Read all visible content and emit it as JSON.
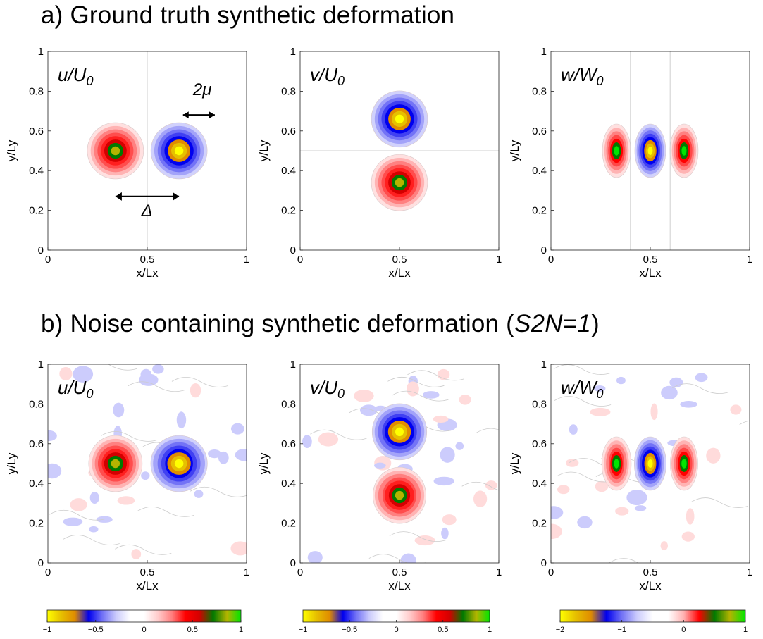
{
  "section_a": {
    "prefix": "a) ",
    "title": "Ground truth synthetic deformation"
  },
  "section_b": {
    "prefix": "b) ",
    "title": "Noise containing synthetic deformation (",
    "title_italic": "S2N=1",
    "title_end": ")"
  },
  "colors": {
    "yellow": "#ffff00",
    "gold": "#e6c000",
    "orange": "#e08c00",
    "blue_dark": "#0000ee",
    "white": "#ffffff",
    "red": "#ff0000",
    "green_dark": "#007a00",
    "olive": "#b4b400",
    "green": "#00e600"
  },
  "chart_data": [
    {
      "type": "heatmap",
      "panel": "u-truth",
      "label": {
        "main": "u/U",
        "sub": "0"
      },
      "xlabel": "x/Lx",
      "ylabel": "y/Ly",
      "xlim": [
        0,
        1
      ],
      "ylim": [
        0,
        1
      ],
      "xticks": [
        "0",
        "0.5",
        "1"
      ],
      "yticks": [
        "0",
        "0.2",
        "0.4",
        "0.6",
        "0.8",
        "1"
      ],
      "blobs": [
        {
          "x": 0.34,
          "y": 0.5,
          "amplitude": 1
        },
        {
          "x": 0.66,
          "y": 0.5,
          "amplitude": -1
        }
      ],
      "guide_lines": {
        "vertical": [
          0.5
        ]
      },
      "annotations": [
        "2μ",
        "Δ"
      ]
    },
    {
      "type": "heatmap",
      "panel": "v-truth",
      "label": {
        "main": "v/U",
        "sub": "0"
      },
      "xlabel": "x/Lx",
      "ylabel": "y/Ly",
      "xlim": [
        0,
        1
      ],
      "ylim": [
        0,
        1
      ],
      "xticks": [
        "0",
        "0.5",
        "1"
      ],
      "yticks": [
        "0",
        "0.2",
        "0.4",
        "0.6",
        "0.8",
        "1"
      ],
      "blobs": [
        {
          "x": 0.5,
          "y": 0.66,
          "amplitude": -1
        },
        {
          "x": 0.5,
          "y": 0.34,
          "amplitude": 1
        }
      ],
      "guide_lines": {
        "horizontal": [
          0.5
        ]
      }
    },
    {
      "type": "heatmap",
      "panel": "w-truth",
      "label": {
        "main": "w/W",
        "sub": "0"
      },
      "xlabel": "x/Lx",
      "ylabel": "y/Ly",
      "xlim": [
        0,
        1
      ],
      "ylim": [
        0,
        1
      ],
      "xticks": [
        "0",
        "0.5",
        "1"
      ],
      "yticks": [
        "0",
        "0.2",
        "0.4",
        "0.6",
        "0.8",
        "1"
      ],
      "blobs": [
        {
          "x": 0.33,
          "y": 0.5,
          "amplitude": 1
        },
        {
          "x": 0.5,
          "y": 0.5,
          "amplitude": -2
        },
        {
          "x": 0.67,
          "y": 0.5,
          "amplitude": 1
        }
      ],
      "guide_lines": {
        "vertical": [
          0.4,
          0.6
        ]
      }
    },
    {
      "type": "heatmap",
      "panel": "u-noisy",
      "label": {
        "main": "u/U",
        "sub": "0"
      },
      "xlabel": "x/Lx",
      "ylabel": "y/Ly",
      "xlim": [
        0,
        1
      ],
      "ylim": [
        0,
        1
      ],
      "xticks": [
        "0",
        "0.5",
        "1"
      ],
      "yticks": [
        "0",
        "0.2",
        "0.4",
        "0.6",
        "0.8",
        "1"
      ],
      "blobs": [
        {
          "x": 0.34,
          "y": 0.5,
          "amplitude": 1
        },
        {
          "x": 0.66,
          "y": 0.5,
          "amplitude": -1
        }
      ],
      "noise": true
    },
    {
      "type": "heatmap",
      "panel": "v-noisy",
      "label": {
        "main": "v/U",
        "sub": "0"
      },
      "xlabel": "x/Lx",
      "ylabel": "y/Ly",
      "xlim": [
        0,
        1
      ],
      "ylim": [
        0,
        1
      ],
      "xticks": [
        "0",
        "0.5",
        "1"
      ],
      "yticks": [
        "0",
        "0.2",
        "0.4",
        "0.6",
        "0.8",
        "1"
      ],
      "blobs": [
        {
          "x": 0.5,
          "y": 0.66,
          "amplitude": -1
        },
        {
          "x": 0.5,
          "y": 0.34,
          "amplitude": 1
        }
      ],
      "noise": true
    },
    {
      "type": "heatmap",
      "panel": "w-noisy",
      "label": {
        "main": "w/W",
        "sub": "0"
      },
      "xlabel": "x/Lx",
      "ylabel": "y/Ly",
      "xlim": [
        0,
        1
      ],
      "ylim": [
        0,
        1
      ],
      "xticks": [
        "0",
        "0.5",
        "1"
      ],
      "yticks": [
        "0",
        "0.2",
        "0.4",
        "0.6",
        "0.8",
        "1"
      ],
      "blobs": [
        {
          "x": 0.33,
          "y": 0.5,
          "amplitude": 1
        },
        {
          "x": 0.5,
          "y": 0.5,
          "amplitude": -2
        },
        {
          "x": 0.67,
          "y": 0.5,
          "amplitude": 1
        }
      ],
      "noise": true
    }
  ],
  "colorbars": [
    {
      "range": [
        -1,
        1
      ],
      "ticks": [
        "−1",
        "−0.5",
        "0",
        "0.5",
        "1"
      ],
      "tick_values": [
        -1,
        -0.5,
        0,
        0.5,
        1
      ]
    },
    {
      "range": [
        -1,
        1
      ],
      "ticks": [
        "−1",
        "−0.5",
        "0",
        "0.5",
        "1"
      ],
      "tick_values": [
        -1,
        -0.5,
        0,
        0.5,
        1
      ]
    },
    {
      "range": [
        -2,
        1
      ],
      "ticks": [
        "−2",
        "−1",
        "0",
        "1"
      ],
      "tick_values": [
        -2,
        -1,
        0,
        1
      ]
    }
  ]
}
